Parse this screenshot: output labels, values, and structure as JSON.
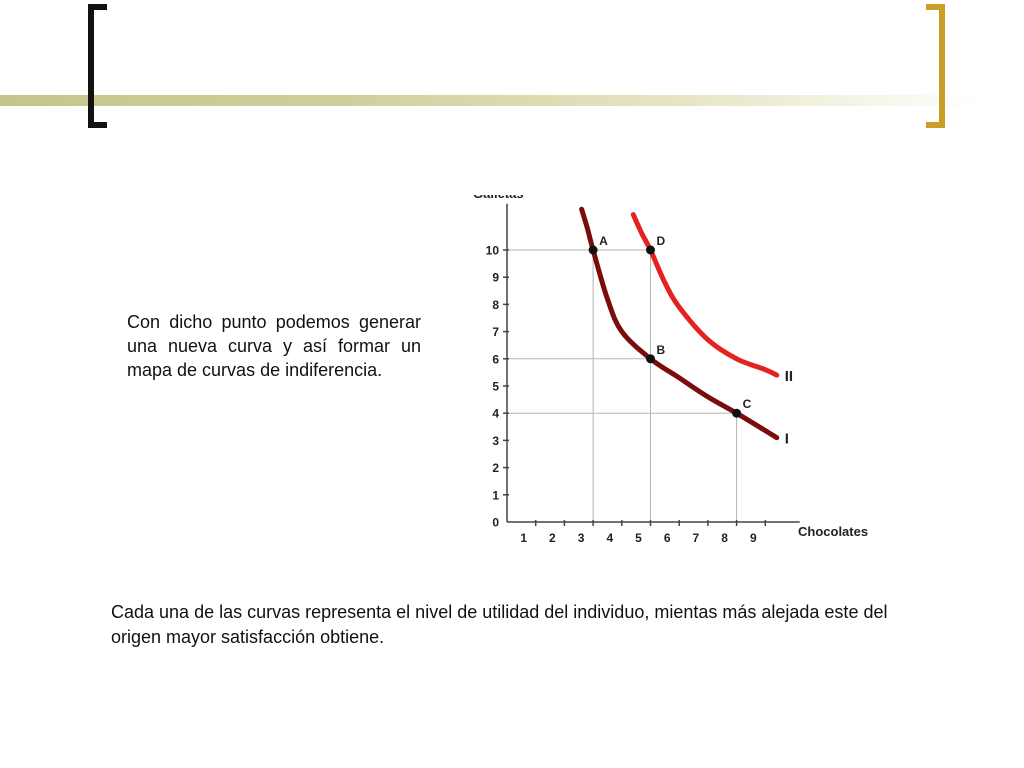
{
  "slide": {
    "side_text": "Con dicho punto podemos generar una nueva curva y así formar un mapa de curvas de indiferencia.",
    "bottom_text": "Cada una de las curvas representa el nivel de utilidad del individuo, mientas más alejada este del origen mayor satisfacción obtiene.",
    "colors": {
      "band": "#cfcf9c",
      "left_bracket": "#111111",
      "right_bracket": "#c8a028"
    }
  },
  "chart_data": {
    "type": "line",
    "title": "",
    "xlabel": "Chocolates",
    "ylabel": "Galletas",
    "xlim": [
      0,
      10
    ],
    "ylim": [
      0,
      11
    ],
    "x_ticks": [
      1,
      2,
      3,
      4,
      5,
      6,
      7,
      8,
      9
    ],
    "y_ticks": [
      0,
      1,
      2,
      3,
      4,
      5,
      6,
      7,
      8,
      9,
      10
    ],
    "grid": false,
    "series": [
      {
        "name": "I",
        "color": "#7a0c0c",
        "x": [
          2.6,
          2.8,
          3,
          3.5,
          4,
          5,
          6,
          7,
          8,
          9.4
        ],
        "y": [
          11.5,
          10.8,
          10,
          8.2,
          7,
          6,
          5.3,
          4.6,
          4,
          3.1
        ]
      },
      {
        "name": "II",
        "color": "#e52222",
        "x": [
          4.4,
          4.7,
          5,
          5.5,
          6,
          7,
          8,
          9,
          9.4
        ],
        "y": [
          11.3,
          10.6,
          10,
          8.8,
          7.9,
          6.7,
          6,
          5.6,
          5.4
        ]
      }
    ],
    "points": [
      {
        "label": "A",
        "x": 3,
        "y": 10
      },
      {
        "label": "D",
        "x": 5,
        "y": 10
      },
      {
        "label": "B",
        "x": 5,
        "y": 6
      },
      {
        "label": "C",
        "x": 8,
        "y": 4
      }
    ]
  }
}
